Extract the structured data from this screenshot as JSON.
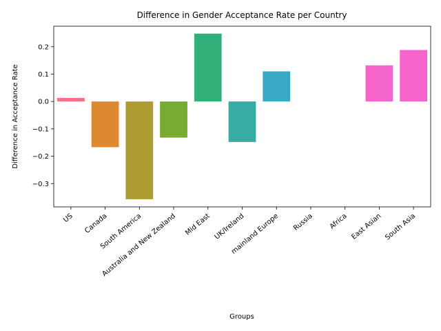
{
  "chart_data": {
    "type": "bar",
    "title": "Difference in Gender Acceptance Rate per Country",
    "xlabel": "Groups",
    "ylabel": "Difference in Acceptance Rate",
    "categories": [
      "US",
      "Canada",
      "South America",
      "Australia and New Zealand",
      "Mid East",
      "UK/Ireland",
      "mainland Europe",
      "Russia",
      "Africa",
      "East Asian",
      "South Asia"
    ],
    "values": [
      0.013,
      -0.167,
      -0.357,
      -0.132,
      0.248,
      -0.148,
      0.11,
      0.0,
      0.0,
      0.132,
      0.188
    ],
    "colors": [
      "#f77189",
      "#dc8932",
      "#ae9d31",
      "#77ab31",
      "#33b07a",
      "#36ada4",
      "#38a9c5",
      "#6e9bf4",
      "#cc7af4",
      "#f565cc",
      "#f565cc"
    ],
    "ylim": [
      -0.385,
      0.275
    ],
    "yticks": [
      -0.3,
      -0.2,
      -0.1,
      0.0,
      0.1,
      0.2
    ],
    "ytick_labels": [
      "−0.3",
      "−0.2",
      "−0.1",
      "0.0",
      "0.1",
      "0.2"
    ],
    "grid": false,
    "legend": "none"
  }
}
